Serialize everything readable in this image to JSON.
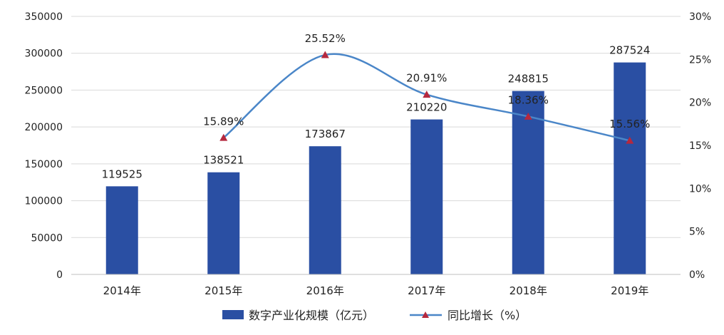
{
  "chart_data": {
    "type": "bar",
    "categories": [
      "2014年",
      "2015年",
      "2016年",
      "2017年",
      "2018年",
      "2019年"
    ],
    "series": [
      {
        "name": "数字产业化规模（亿元）",
        "type": "bar",
        "axis": "left",
        "values": [
          119525,
          138521,
          173867,
          210220,
          248815,
          287524
        ],
        "labels": [
          "119525",
          "138521",
          "173867",
          "210220",
          "248815",
          "287524"
        ],
        "color": "#2A4FA3"
      },
      {
        "name": "同比增长（%）",
        "type": "line",
        "axis": "right",
        "smooth": true,
        "marker": "triangle",
        "values": [
          null,
          15.89,
          25.52,
          20.91,
          18.36,
          15.56
        ],
        "labels": [
          "",
          "15.89%",
          "25.52%",
          "20.91%",
          "18.36%",
          "15.56%"
        ],
        "color": "#4A86C8",
        "marker_color": "#B5283E"
      }
    ],
    "y_left": {
      "ylim": [
        0,
        350000
      ],
      "ticks": [
        "0",
        "50000",
        "100000",
        "150000",
        "200000",
        "250000",
        "300000",
        "350000"
      ]
    },
    "y_right": {
      "ylim": [
        0,
        30
      ],
      "ticks": [
        "0%",
        "5%",
        "10%",
        "15%",
        "20%",
        "25%",
        "30%"
      ]
    },
    "title": "",
    "xlabel": "",
    "ylabel": "",
    "grid": true,
    "legend_position": "bottom"
  }
}
